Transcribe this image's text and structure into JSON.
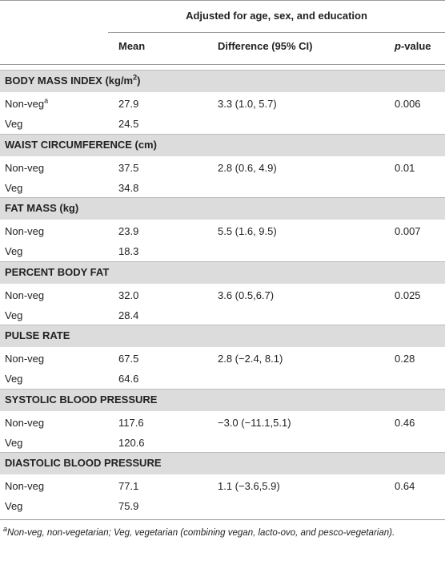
{
  "table": {
    "header": {
      "group": "Adjusted for age, sex, and education",
      "columns": [
        "Mean",
        "Difference (95% CI)"
      ],
      "p_column": {
        "italic": "p",
        "rest": "-value"
      }
    },
    "sections": [
      {
        "title": "BODY MASS INDEX (kg/m",
        "title_superscript": "2",
        "title_after": ")",
        "rows": [
          {
            "label": "Non-veg",
            "label_superscript": "a",
            "mean": "27.9",
            "difference": "3.3 (1.0, 5.7)",
            "p_value": "0.006"
          },
          {
            "label": "Veg",
            "mean": "24.5"
          }
        ]
      },
      {
        "title": "WAIST CIRCUMFERENCE (cm)",
        "rows": [
          {
            "label": "Non-veg",
            "mean": "37.5",
            "difference": "2.8 (0.6, 4.9)",
            "p_value": "0.01"
          },
          {
            "label": "Veg",
            "mean": "34.8"
          }
        ]
      },
      {
        "title": "FAT MASS (kg)",
        "rows": [
          {
            "label": "Non-veg",
            "mean": "23.9",
            "difference": "5.5 (1.6, 9.5)",
            "p_value": "0.007"
          },
          {
            "label": "Veg",
            "mean": "18.3"
          }
        ]
      },
      {
        "title": "PERCENT BODY FAT",
        "rows": [
          {
            "label": "Non-veg",
            "mean": "32.0",
            "difference": "3.6 (0.5,6.7)",
            "p_value": "0.025"
          },
          {
            "label": "Veg",
            "mean": "28.4"
          }
        ]
      },
      {
        "title": "PULSE RATE",
        "rows": [
          {
            "label": "Non-veg",
            "mean": "67.5",
            "difference": "2.8 (−2.4, 8.1)",
            "p_value": "0.28"
          },
          {
            "label": "Veg",
            "mean": "64.6"
          }
        ]
      },
      {
        "title": "SYSTOLIC BLOOD PRESSURE",
        "rows": [
          {
            "label": "Non-veg",
            "mean": "117.6",
            "difference": "−3.0 (−11.1,5.1)",
            "p_value": "0.46"
          },
          {
            "label": "Veg",
            "mean": "120.6"
          }
        ]
      },
      {
        "title": "DIASTOLIC BLOOD PRESSURE",
        "rows": [
          {
            "label": "Non-veg",
            "mean": "77.1",
            "difference": "1.1 (−3.6,5.9)",
            "p_value": "0.64"
          },
          {
            "label": "Veg",
            "mean": "75.9"
          }
        ]
      }
    ]
  },
  "footnote": {
    "superscript": "a",
    "text": "Non-veg, non-vegetarian; Veg, vegetarian (combining vegan, lacto-ovo, and pesco-vegetarian)."
  }
}
